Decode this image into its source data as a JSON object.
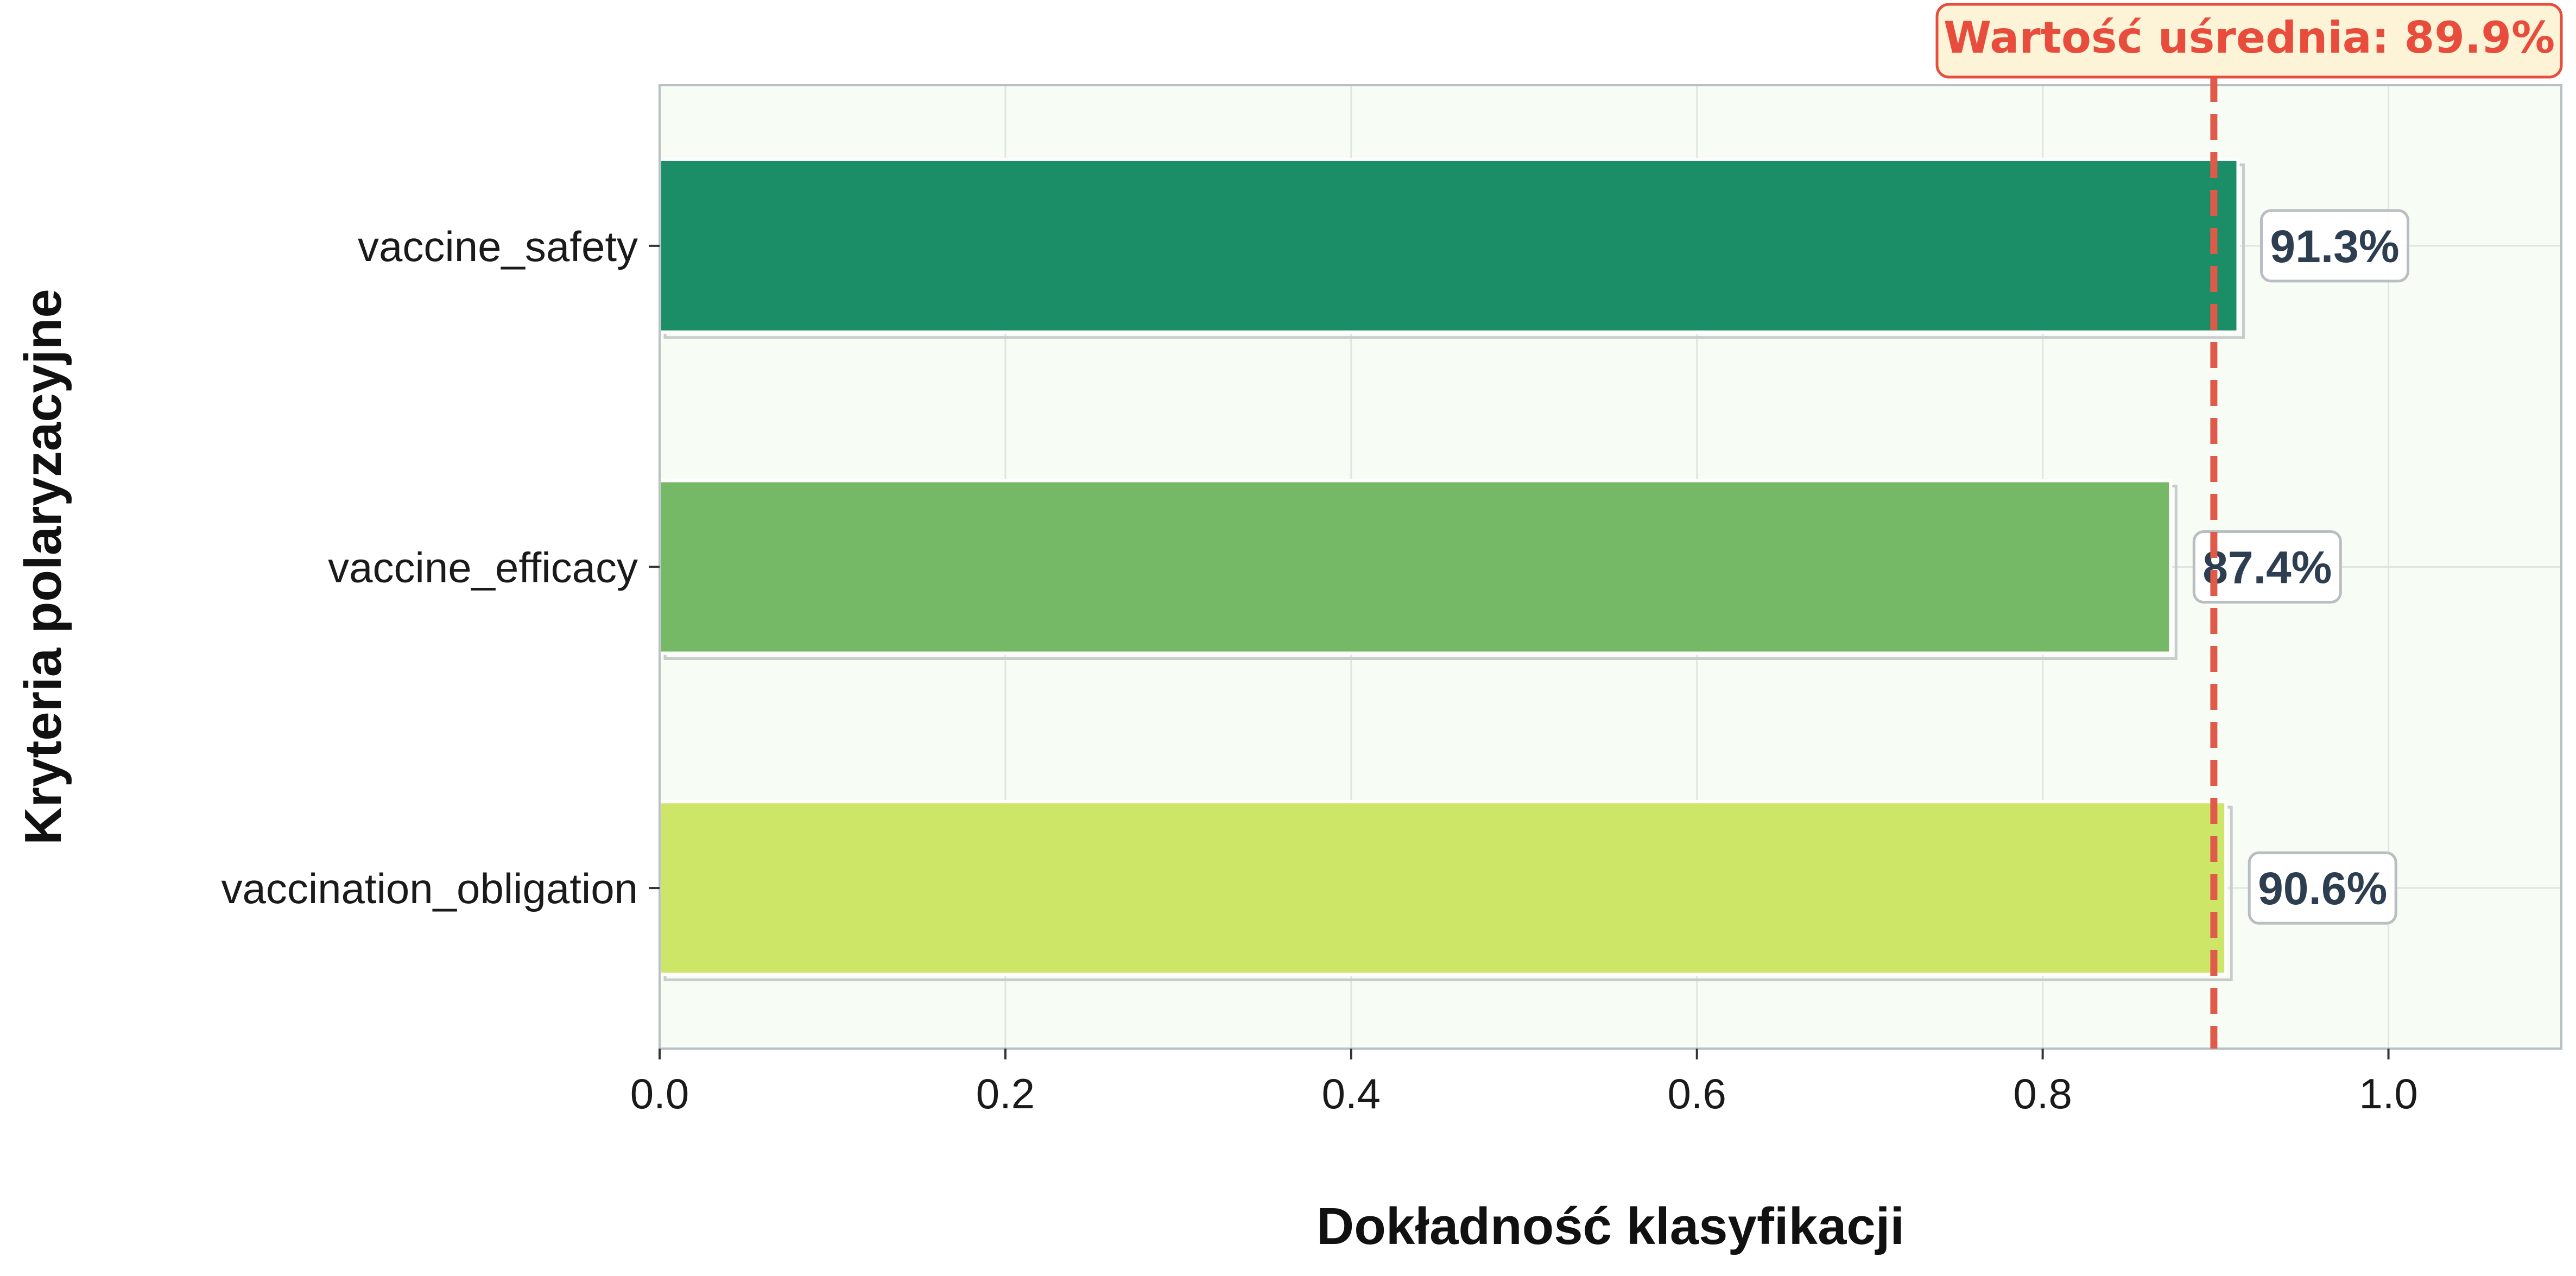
{
  "chart_data": {
    "type": "bar",
    "orientation": "horizontal",
    "categories": [
      "vaccine_safety",
      "vaccine_efficacy",
      "vaccination_obligation"
    ],
    "values": [
      0.913,
      0.874,
      0.906
    ],
    "value_labels": [
      "91.3%",
      "87.4%",
      "90.6%"
    ],
    "bar_colors": [
      "#1b8e68",
      "#75b966",
      "#cde667"
    ],
    "xlabel": "Dokładność klasyfikacji",
    "ylabel": "Kryteria polaryzacyjne",
    "xlim": [
      0,
      1.1
    ],
    "xticks": [
      0.0,
      0.2,
      0.4,
      0.6,
      0.8,
      1.0
    ],
    "xtick_labels": [
      "0.0",
      "0.2",
      "0.4",
      "0.6",
      "0.8",
      "1.0"
    ],
    "grid": true,
    "mean_line": {
      "value": 0.899,
      "label": "Wartość uśrednia: 89.9%",
      "color": "#e05a4a",
      "style": "dashed"
    },
    "colors": {
      "plot_background": "#f7fcf5",
      "grid": "#dfe5e0",
      "spine": "#b8c0c4",
      "value_text": "#2c3e50",
      "mean_box_fill": "#fdf3d6",
      "mean_text": "#e74c3c"
    }
  }
}
